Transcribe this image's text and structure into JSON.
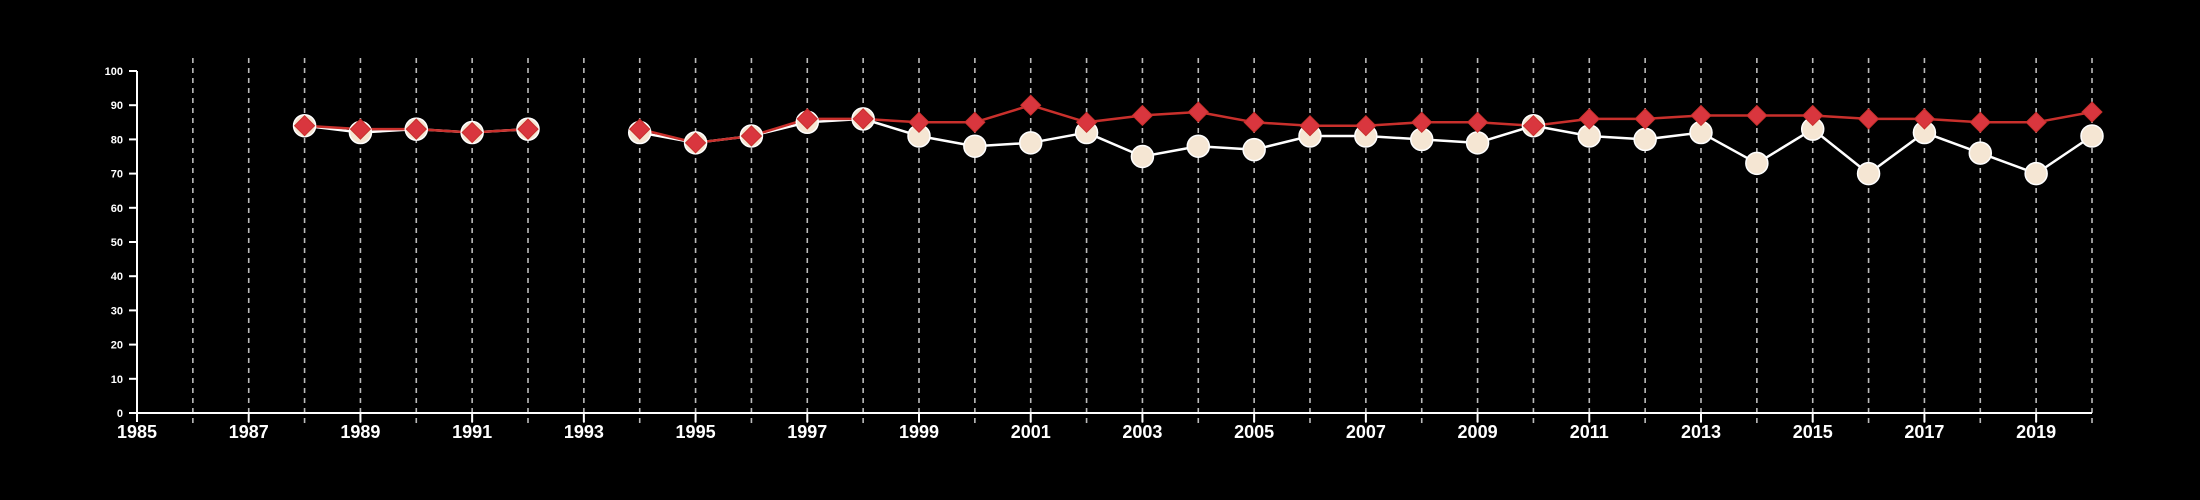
{
  "chart_data": {
    "type": "line",
    "title": "",
    "xlabel": "",
    "ylabel": "",
    "xlim": [
      1985,
      2020
    ],
    "ylim": [
      0,
      100
    ],
    "x_ticks": [
      1985,
      1987,
      1989,
      1991,
      1993,
      1995,
      1997,
      1999,
      2001,
      2003,
      2005,
      2007,
      2009,
      2011,
      2013,
      2015,
      2017,
      2019
    ],
    "x_tick_labels": [
      "1985",
      "1987",
      "1989",
      "1991",
      "1993",
      "1995",
      "1997",
      "1999",
      "2001",
      "2003",
      "2005",
      "2007",
      "2009",
      "2011",
      "2013",
      "2015",
      "2017",
      "2019"
    ],
    "y_ticks": [
      0,
      10,
      20,
      30,
      40,
      50,
      60,
      70,
      80,
      90,
      100
    ],
    "y_tick_labels": [
      "0",
      "10",
      "20",
      "30",
      "40",
      "50",
      "60",
      "70",
      "80",
      "90",
      "100"
    ],
    "grid": {
      "vertical_dashed_lines_each_year": true,
      "years": [
        1986,
        1987,
        1988,
        1989,
        1990,
        1991,
        1992,
        1993,
        1994,
        1995,
        1996,
        1997,
        1998,
        1999,
        2000,
        2001,
        2002,
        2003,
        2004,
        2005,
        2006,
        2007,
        2008,
        2009,
        2010,
        2011,
        2012,
        2013,
        2014,
        2015,
        2016,
        2017,
        2018,
        2019,
        2020
      ]
    },
    "legend": "none",
    "series": [
      {
        "marker": "circle",
        "color": "#ffffff",
        "fill": "#f5e6d3",
        "points": [
          [
            1988,
            84
          ],
          [
            1989,
            82
          ],
          [
            1990,
            83
          ],
          [
            1991,
            82
          ],
          [
            1992,
            83
          ],
          [
            1994,
            82
          ],
          [
            1995,
            79
          ],
          [
            1996,
            81
          ],
          [
            1997,
            85
          ],
          [
            1998,
            86
          ],
          [
            1999,
            81
          ],
          [
            2000,
            78
          ],
          [
            2001,
            79
          ],
          [
            2002,
            82
          ],
          [
            2003,
            75
          ],
          [
            2004,
            78
          ],
          [
            2005,
            77
          ],
          [
            2006,
            81
          ],
          [
            2007,
            81
          ],
          [
            2008,
            80
          ],
          [
            2009,
            79
          ],
          [
            2010,
            84
          ],
          [
            2011,
            81
          ],
          [
            2012,
            80
          ],
          [
            2013,
            82
          ],
          [
            2014,
            73
          ],
          [
            2015,
            83
          ],
          [
            2016,
            70
          ],
          [
            2017,
            82
          ],
          [
            2018,
            76
          ],
          [
            2019,
            70
          ],
          [
            2020,
            81
          ]
        ]
      },
      {
        "marker": "diamond",
        "color": "#c9302c",
        "fill": "#d9363e",
        "points": [
          [
            1988,
            84
          ],
          [
            1989,
            83
          ],
          [
            1990,
            83
          ],
          [
            1991,
            82
          ],
          [
            1992,
            83
          ],
          [
            1994,
            83
          ],
          [
            1995,
            79
          ],
          [
            1996,
            81
          ],
          [
            1997,
            86
          ],
          [
            1998,
            86
          ],
          [
            1999,
            85
          ],
          [
            2000,
            85
          ],
          [
            2001,
            90
          ],
          [
            2002,
            85
          ],
          [
            2003,
            87
          ],
          [
            2004,
            88
          ],
          [
            2005,
            85
          ],
          [
            2006,
            84
          ],
          [
            2007,
            84
          ],
          [
            2008,
            85
          ],
          [
            2009,
            85
          ],
          [
            2010,
            84
          ],
          [
            2011,
            86
          ],
          [
            2012,
            86
          ],
          [
            2013,
            87
          ],
          [
            2014,
            87
          ],
          [
            2015,
            87
          ],
          [
            2016,
            86
          ],
          [
            2017,
            86
          ],
          [
            2018,
            85
          ],
          [
            2019,
            85
          ],
          [
            2020,
            88
          ]
        ]
      }
    ]
  }
}
